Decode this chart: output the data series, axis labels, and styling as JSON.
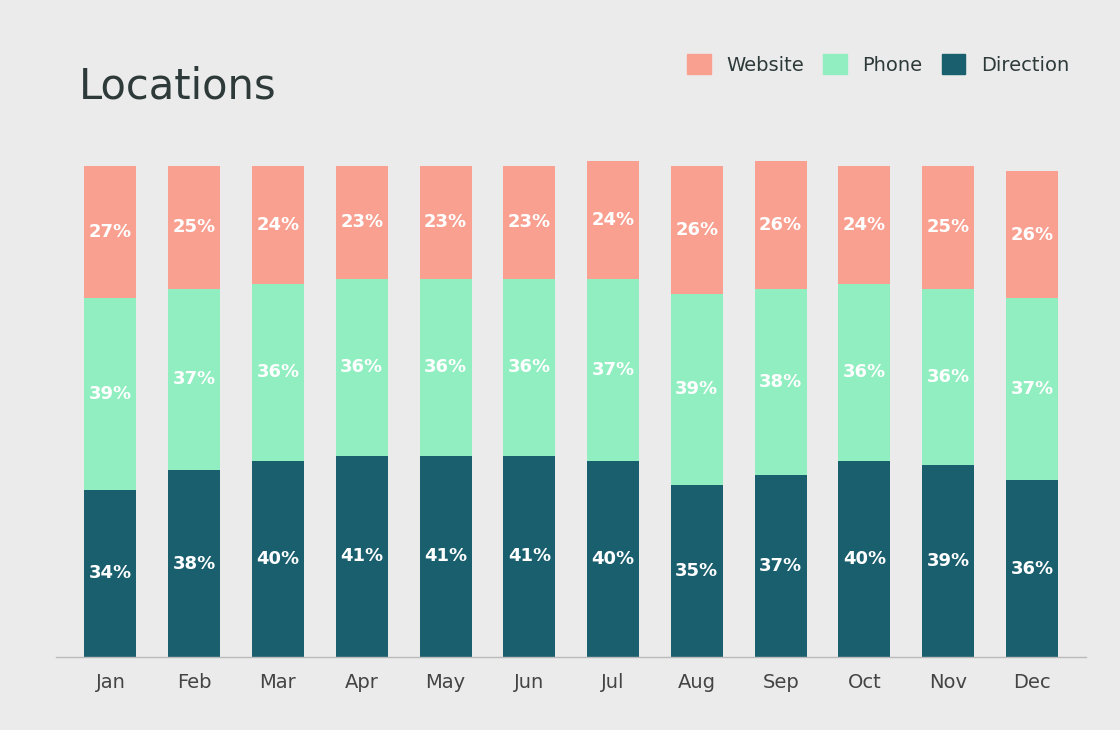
{
  "title": "Locations",
  "categories": [
    "Jan",
    "Feb",
    "Mar",
    "Apr",
    "May",
    "Jun",
    "Jul",
    "Aug",
    "Sep",
    "Oct",
    "Nov",
    "Dec"
  ],
  "direction": [
    34,
    38,
    40,
    41,
    41,
    41,
    40,
    35,
    37,
    40,
    39,
    36
  ],
  "phone": [
    39,
    37,
    36,
    36,
    36,
    36,
    37,
    39,
    38,
    36,
    36,
    37
  ],
  "website": [
    27,
    25,
    24,
    23,
    23,
    23,
    24,
    26,
    26,
    24,
    25,
    26
  ],
  "color_direction": "#1a5f6e",
  "color_phone": "#90eec0",
  "color_website": "#f9a090",
  "background_color": "#ebebeb",
  "text_color_white": "#ffffff",
  "title_fontsize": 30,
  "title_color": "#2e3a3a",
  "label_fontsize": 13,
  "tick_fontsize": 14,
  "legend_fontsize": 14,
  "bar_width": 0.62
}
